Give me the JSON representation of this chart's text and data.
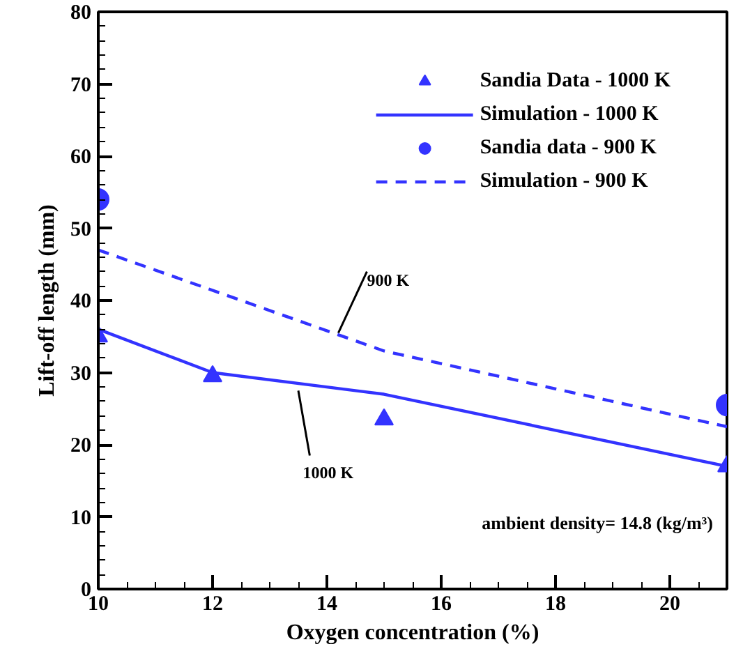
{
  "chart_data": {
    "type": "line",
    "xlabel": "Oxygen concentration (%)",
    "ylabel": "Lift-off length (mm)",
    "xlim": [
      10,
      21
    ],
    "xticks": [
      10,
      12,
      14,
      16,
      18,
      20
    ],
    "ylim": [
      0,
      80
    ],
    "yticks": [
      0,
      10,
      20,
      30,
      40,
      50,
      60,
      70,
      80
    ],
    "grid": false,
    "legend": "top right",
    "series": [
      {
        "name": "Sandia Data - 1000 K",
        "type": "scatter",
        "marker": "triangle",
        "color": "#3333ff",
        "x": [
          10,
          12,
          15,
          21
        ],
        "values": [
          35,
          29.5,
          23.5,
          17
        ]
      },
      {
        "name": "Simulation - 1000 K",
        "line_style": "solid",
        "color": "#3333ff",
        "x": [
          10,
          12,
          15,
          21
        ],
        "values": [
          36,
          30,
          27,
          17
        ]
      },
      {
        "name": "Sandia data - 900 K",
        "type": "scatter",
        "marker": "circle",
        "color": "#3333ff",
        "x": [
          10,
          21
        ],
        "values": [
          54,
          25.5
        ]
      },
      {
        "name": "Simulation - 900 K",
        "line_style": "dashed",
        "color": "#3333ff",
        "x": [
          10,
          15,
          21
        ],
        "values": [
          47,
          33,
          22.5
        ]
      }
    ],
    "annotations": [
      {
        "text": "900 K",
        "x": 14.2,
        "y": 35.5
      },
      {
        "text": "1000 K",
        "x": 13.5,
        "y": 27.5
      },
      "ambient density= 14.8 (kg/m³)"
    ]
  }
}
